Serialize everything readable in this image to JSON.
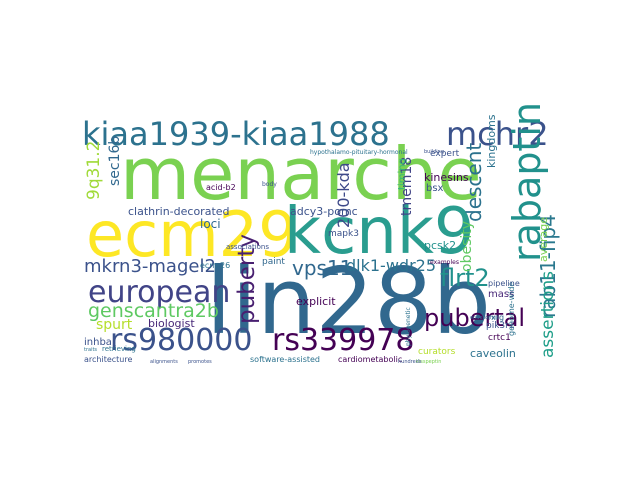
{
  "words": [
    {
      "id": "menarche",
      "text": "menarche",
      "color": "#7ad151"
    },
    {
      "id": "lin28b",
      "text": "lin28b",
      "color": "#31688e"
    },
    {
      "id": "ecm29",
      "text": "ecm29",
      "color": "#fde725"
    },
    {
      "id": "kcnk9",
      "text": "kcnk9",
      "color": "#2a9d8f"
    },
    {
      "id": "kiaa1939-kiaa1988",
      "text": "kiaa1939-kiaa1988",
      "color": "#2c728e"
    },
    {
      "id": "mchr2",
      "text": "mchr2",
      "color": "#3b528b"
    },
    {
      "id": "rabaptin",
      "text": "rabaptin",
      "color": "#21918c"
    },
    {
      "id": "rs980000",
      "text": "rs980000",
      "color": "#3b528b"
    },
    {
      "id": "rs339978",
      "text": "rs339978",
      "color": "#440154"
    },
    {
      "id": "european",
      "text": "european",
      "color": "#414487"
    },
    {
      "id": "mkrn3-magel2",
      "text": "mkrn3-magel2",
      "color": "#3b528b"
    },
    {
      "id": "genscantra2b",
      "text": "genscantra2b",
      "color": "#5ec962"
    },
    {
      "id": "puberty",
      "text": "puberty",
      "color": "#481f70"
    },
    {
      "id": "vps11",
      "text": "vps11",
      "color": "#31688e"
    },
    {
      "id": "dlk1-wdr25",
      "text": "dlk1-wdr25",
      "color": "#2c728e"
    },
    {
      "id": "flrt2",
      "text": "flrt2",
      "color": "#21918c"
    },
    {
      "id": "rab11-fip4",
      "text": "rab11-fip4",
      "color": "#2a788e"
    },
    {
      "id": "pubertal",
      "text": "pubertal",
      "color": "#440154"
    },
    {
      "id": "assertions",
      "text": "assertions",
      "color": "#1f9e89"
    },
    {
      "id": "descent",
      "text": "descent",
      "color": "#2c728e"
    },
    {
      "id": "9q31.2",
      "text": "9q31.2",
      "color": "#a0da39"
    },
    {
      "id": "sec16b",
      "text": "sec16b",
      "color": "#31688e"
    },
    {
      "id": "200-kda",
      "text": "200-kda",
      "color": "#3e4989"
    },
    {
      "id": "tmem18",
      "text": "tmem18",
      "color": "#414487"
    },
    {
      "id": "spurt",
      "text": "spurt",
      "color": "#b5de2b"
    },
    {
      "id": "biologist",
      "text": "biologist",
      "color": "#482878"
    },
    {
      "id": "clathrin-decorated",
      "text": "clathrin-decorated",
      "color": "#3b528b"
    },
    {
      "id": "adcy3-pomc",
      "text": "adcy3-pomc",
      "color": "#3b528b"
    },
    {
      "id": "loci",
      "text": "loci",
      "color": "#31688e"
    },
    {
      "id": "obesity",
      "text": "obesity",
      "color": "#5ec962"
    },
    {
      "id": "kinesins",
      "text": "kinesins",
      "color": "#440154"
    },
    {
      "id": "pcsk2",
      "text": "pcsk2",
      "color": "#21918c"
    },
    {
      "id": "bsx",
      "text": "bsx",
      "color": "#3b528b"
    },
    {
      "id": "timing",
      "text": "timing",
      "color": "#35b779"
    },
    {
      "id": "kingdoms",
      "text": "kingdoms",
      "color": "#2c728e"
    },
    {
      "id": "caveolin",
      "text": "caveolin",
      "color": "#2c728e"
    },
    {
      "id": "curators",
      "text": "curators",
      "color": "#b5de2b"
    },
    {
      "id": "crtc1",
      "text": "crtc1",
      "color": "#440154"
    },
    {
      "id": "mass",
      "text": "mass",
      "color": "#482878"
    },
    {
      "id": "pik3r1",
      "text": "pik3r1",
      "color": "#3b528b"
    },
    {
      "id": "genome-wide",
      "text": "genome-wide",
      "color": "#2c728e"
    },
    {
      "id": "average",
      "text": "average",
      "color": "#7ad151"
    },
    {
      "id": "explicit",
      "text": "explicit",
      "color": "#440154"
    },
    {
      "id": "paint",
      "text": "paint",
      "color": "#31688e"
    },
    {
      "id": "mapk3",
      "text": "mapk3",
      "color": "#3b528b"
    },
    {
      "id": "cardiometabolic",
      "text": "cardiometabolic",
      "color": "#440154"
    },
    {
      "id": "software-assisted",
      "text": "software-assisted",
      "color": "#2c728e"
    },
    {
      "id": "architecture",
      "text": "architecture",
      "color": "#3b528b"
    },
    {
      "id": "inhba",
      "text": "inhba",
      "color": "#3b528b"
    },
    {
      "id": "retrieving",
      "text": "retrieving",
      "color": "#2c728e"
    },
    {
      "id": "expert",
      "text": "expert",
      "color": "#3b528b"
    },
    {
      "id": "pipeline",
      "text": "pipeline",
      "color": "#3b528b"
    },
    {
      "id": "rxrg",
      "text": "rxrg",
      "color": "#31688e"
    },
    {
      "id": "acid-b2",
      "text": "acid-b2",
      "color": "#440154"
    },
    {
      "id": "associations",
      "text": "associations",
      "color": "#3b528b"
    },
    {
      "id": "ecm-26",
      "text": "ecm-26",
      "color": "#2c728e"
    },
    {
      "id": "body",
      "text": "body",
      "color": "#3b528b"
    },
    {
      "id": "hypothalamo",
      "text": "hypothalamo-pituitary-hormonal",
      "color": "#2c728e"
    },
    {
      "id": "building",
      "text": "building",
      "color": "#3b528b"
    },
    {
      "id": "examples",
      "text": "examples",
      "color": "#440154"
    },
    {
      "id": "alignments",
      "text": "alignments",
      "color": "#3b528b"
    },
    {
      "id": "traits",
      "text": "traits",
      "color": "#2c728e"
    },
    {
      "id": "promotes",
      "text": "promotes",
      "color": "#3b528b"
    },
    {
      "id": "kisspeptin",
      "text": "kisspeptin",
      "color": "#7ad151"
    },
    {
      "id": "hundreds",
      "text": "hundreds",
      "color": "#3b528b"
    },
    {
      "id": "phylogenetic",
      "text": "phylogenetic",
      "color": "#2c728e"
    },
    {
      "id": "endosomes",
      "text": "endosomes",
      "color": "#31688e"
    }
  ]
}
